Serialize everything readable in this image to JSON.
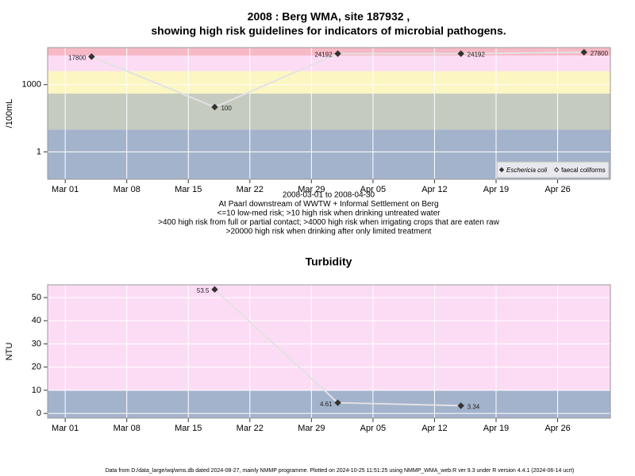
{
  "chart_data": [
    {
      "type": "line",
      "title": "2008 : Berg WMA, site 187932 ,",
      "subtitle": "showing high risk guidelines for indicators of microbial pathogens.",
      "y_label": "/100mL",
      "log_y": true,
      "ylim": [
        0.06,
        45000
      ],
      "yticks": [
        1,
        1000
      ],
      "xlim": [
        "2008-02-28",
        "2008-05-02"
      ],
      "xticks": [
        {
          "value": "2008-03-01",
          "label": "Mar 01"
        },
        {
          "value": "2008-03-08",
          "label": "Mar 08"
        },
        {
          "value": "2008-03-15",
          "label": "Mar 15"
        },
        {
          "value": "2008-03-22",
          "label": "Mar 22"
        },
        {
          "value": "2008-03-29",
          "label": "Mar 29"
        },
        {
          "value": "2008-04-05",
          "label": "Apr 05"
        },
        {
          "value": "2008-04-12",
          "label": "Apr 12"
        },
        {
          "value": "2008-04-19",
          "label": "Apr 19"
        },
        {
          "value": "2008-04-26",
          "label": "Apr 26"
        }
      ],
      "grid": true,
      "thresholds": [
        10,
        400,
        4000,
        20000
      ],
      "band_colors": [
        "#a3b3cc",
        "#c5cbbf",
        "#fcf6c2",
        "#fcdcf5",
        "#f7b9c6"
      ],
      "x": [
        "2008-03-04",
        "2008-03-18",
        "2008-04-01",
        "2008-04-15",
        "2008-04-29"
      ],
      "series": [
        {
          "name": "Eschericia coli",
          "color": "#333333",
          "marker": "filled",
          "values": [
            17800,
            100,
            24192,
            24192,
            27800
          ]
        },
        {
          "name": "faecal coliforms",
          "color": "#333333",
          "marker": "open",
          "values": [
            null,
            null,
            null,
            null,
            null
          ]
        }
      ],
      "legend": "bottom-right",
      "notes": [
        "2008-03-01 to 2008-04-30",
        "At Paarl downstream of WWTW + Informal Settlement on Berg",
        "<=10 low-med risk; >10 high risk when drinking untreated water",
        ">400 high risk from full or partial contact; >4000 high risk when irrigating crops that are eaten raw",
        ">20000 high risk when drinking after only limited treatment"
      ]
    },
    {
      "type": "line",
      "title": "Turbidity",
      "y_label": "NTU",
      "log_y": false,
      "ylim": [
        -2,
        55.5
      ],
      "yticks": [
        0,
        10,
        20,
        30,
        40,
        50
      ],
      "xlim": [
        "2008-02-28",
        "2008-05-02"
      ],
      "xticks": [
        {
          "value": "2008-03-01",
          "label": "Mar 01"
        },
        {
          "value": "2008-03-08",
          "label": "Mar 08"
        },
        {
          "value": "2008-03-15",
          "label": "Mar 15"
        },
        {
          "value": "2008-03-22",
          "label": "Mar 22"
        },
        {
          "value": "2008-03-29",
          "label": "Mar 29"
        },
        {
          "value": "2008-04-05",
          "label": "Apr 05"
        },
        {
          "value": "2008-04-12",
          "label": "Apr 12"
        },
        {
          "value": "2008-04-19",
          "label": "Apr 19"
        },
        {
          "value": "2008-04-26",
          "label": "Apr 26"
        }
      ],
      "grid": true,
      "thresholds": [
        10
      ],
      "band_colors": [
        "#a3b3cc",
        "#fcdcf5"
      ],
      "x": [
        "2008-03-18",
        "2008-04-01",
        "2008-04-15"
      ],
      "series": [
        {
          "name": "Turbidity",
          "color": "#333333",
          "marker": "filled",
          "values": [
            53.5,
            4.61,
            3.34
          ]
        }
      ]
    }
  ],
  "footer": "Data from D:/data_large/wq/wms.db dated 2024-08-27, mainly NMMP programme. Plotted on 2024-10-25 11:51:25 using NMMP_WMA_web.R ver 9.3 under R version 4.4.1 (2024-06-14 ucrt)"
}
